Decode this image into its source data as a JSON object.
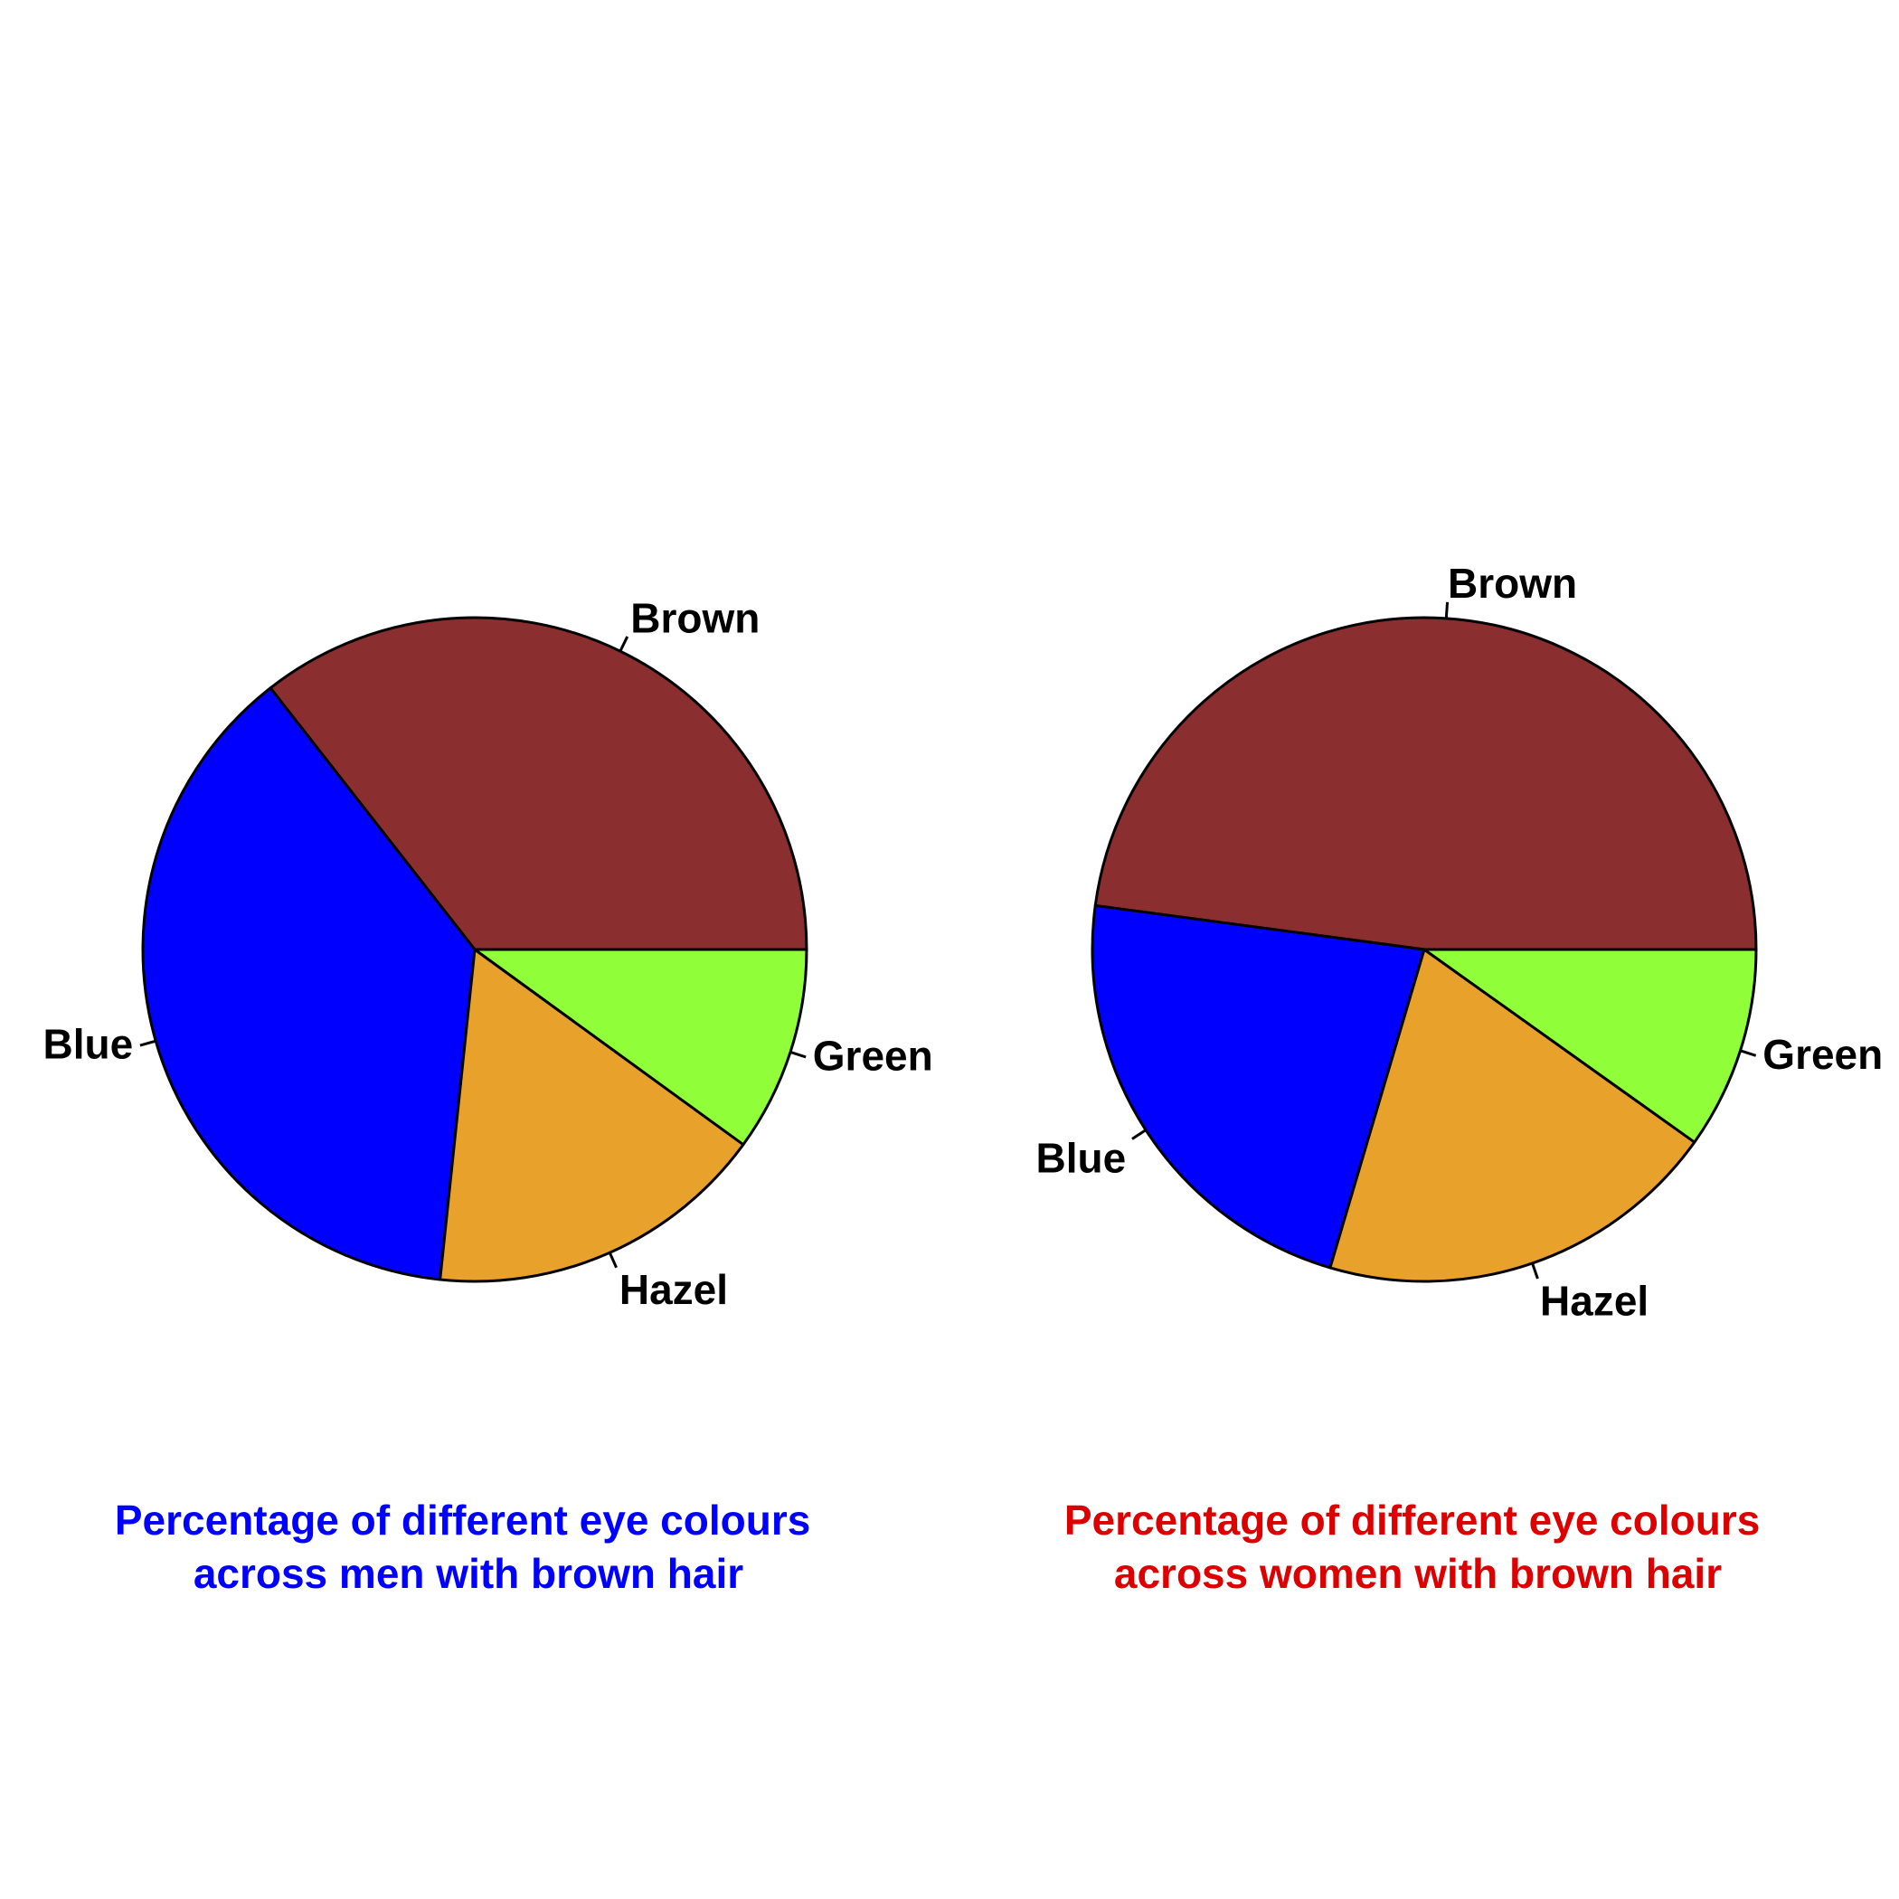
{
  "chart_data": [
    {
      "type": "pie",
      "caption_lines": [
        "Percentage of different eye colours",
        "across men with brown hair"
      ],
      "caption_color": "#0000ff",
      "categories": [
        "Brown",
        "Blue",
        "Hazel",
        "Green"
      ],
      "values": [
        32,
        34,
        15,
        9
      ],
      "colors": [
        "#8b2e30",
        "#0000ff",
        "#e8a12b",
        "#90ff3a"
      ],
      "direction": "counterclockwise",
      "start_angle_deg": 0
    },
    {
      "type": "pie",
      "caption_lines": [
        "Percentage of different eye colours",
        "across women with brown hair"
      ],
      "caption_color": "#dd0000",
      "categories": [
        "Brown",
        "Blue",
        "Hazel",
        "Green"
      ],
      "values": [
        34,
        16,
        14,
        7
      ],
      "colors": [
        "#8b2e30",
        "#0000ff",
        "#e8a12b",
        "#90ff3a"
      ],
      "direction": "counterclockwise",
      "start_angle_deg": 0
    }
  ]
}
